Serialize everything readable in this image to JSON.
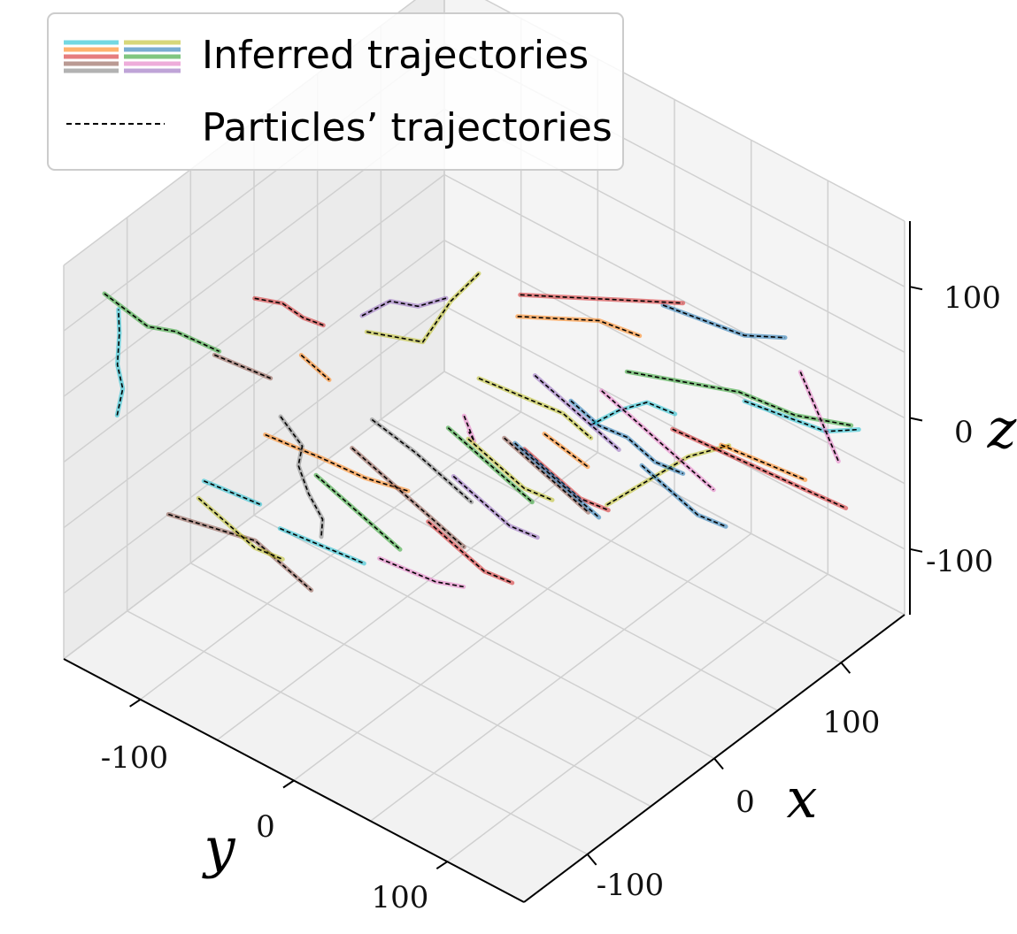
{
  "chart_data": {
    "type": "line",
    "projection": "3d",
    "xlabel": "x",
    "ylabel": "y",
    "zlabel": "z",
    "xlim": [
      -150,
      150
    ],
    "ylim": [
      -150,
      150
    ],
    "zlim": [
      -150,
      150
    ],
    "x_ticks": [
      "-100",
      "0",
      "100"
    ],
    "y_ticks": [
      "-100",
      "0",
      "100"
    ],
    "z_ticks": [
      "-100",
      "0",
      "100"
    ],
    "grid": true,
    "legend": {
      "position": "top-left",
      "entries": [
        {
          "label": "Inferred trajectories",
          "style": "multicolor-solid"
        },
        {
          "label": "Particles’ trajectories",
          "style": "black-dashed"
        }
      ]
    },
    "palette": [
      "#17becf",
      "#ff7f0e",
      "#d62728",
      "#8c564b",
      "#7f7f7f",
      "#bcbd22",
      "#1f77b4",
      "#2ca02c",
      "#e377c2",
      "#9467bd"
    ],
    "series": [
      {
        "color": "#17becf",
        "points": [
          [
            -120,
            -140,
            20
          ],
          [
            -118,
            -138,
            40
          ],
          [
            -121,
            -139,
            60
          ],
          [
            -117,
            -141,
            80
          ],
          [
            -119,
            -140,
            100
          ]
        ]
      },
      {
        "color": "#d62728",
        "points": [
          [
            -60,
            -100,
            90
          ],
          [
            -50,
            -90,
            85
          ],
          [
            -40,
            -85,
            70
          ],
          [
            -30,
            -80,
            60
          ]
        ]
      },
      {
        "color": "#ff7f0e",
        "points": [
          [
            -100,
            -60,
            40
          ],
          [
            -90,
            -50,
            30
          ],
          [
            -80,
            -40,
            20
          ],
          [
            -70,
            -20,
            10
          ],
          [
            -60,
            0,
            5
          ]
        ]
      },
      {
        "color": "#2ca02c",
        "points": [
          [
            -130,
            -140,
            120
          ],
          [
            -120,
            -120,
            100
          ],
          [
            -110,
            -110,
            95
          ],
          [
            -100,
            -90,
            85
          ]
        ]
      },
      {
        "color": "#8c564b",
        "points": [
          [
            -140,
            -90,
            -10
          ],
          [
            -130,
            -70,
            -15
          ],
          [
            -120,
            -50,
            -20
          ],
          [
            -110,
            -40,
            -40
          ],
          [
            -100,
            -30,
            -60
          ]
        ]
      },
      {
        "color": "#7f7f7f",
        "points": [
          [
            -100,
            -50,
            60
          ],
          [
            -95,
            -40,
            40
          ],
          [
            -92,
            -45,
            20
          ],
          [
            -90,
            -40,
            0
          ],
          [
            -85,
            -35,
            -20
          ],
          [
            -80,
            -40,
            -40
          ]
        ]
      },
      {
        "color": "#bcbd22",
        "points": [
          [
            -20,
            -60,
            60
          ],
          [
            -10,
            -50,
            55
          ],
          [
            0,
            -40,
            50
          ],
          [
            10,
            -30,
            80
          ],
          [
            20,
            -20,
            100
          ]
        ]
      },
      {
        "color": "#9467bd",
        "points": [
          [
            -60,
            -30,
            120
          ],
          [
            -50,
            -20,
            130
          ],
          [
            -40,
            -10,
            125
          ],
          [
            -30,
            0,
            130
          ]
        ]
      },
      {
        "color": "#e377c2",
        "points": [
          [
            -40,
            20,
            60
          ],
          [
            -30,
            15,
            40
          ],
          [
            -20,
            10,
            20
          ],
          [
            -10,
            0,
            10
          ],
          [
            0,
            -10,
            0
          ]
        ]
      },
      {
        "color": "#1f77b4",
        "points": [
          [
            20,
            100,
            150
          ],
          [
            40,
            110,
            130
          ],
          [
            60,
            120,
            110
          ],
          [
            80,
            130,
            100
          ]
        ]
      },
      {
        "color": "#d62728",
        "points": [
          [
            -20,
            40,
            150
          ],
          [
            0,
            50,
            140
          ],
          [
            20,
            60,
            130
          ],
          [
            40,
            70,
            120
          ],
          [
            60,
            80,
            110
          ]
        ]
      },
      {
        "color": "#ff7f0e",
        "points": [
          [
            -10,
            30,
            120
          ],
          [
            10,
            40,
            110
          ],
          [
            30,
            50,
            100
          ],
          [
            50,
            60,
            80
          ]
        ]
      },
      {
        "color": "#2ca02c",
        "points": [
          [
            40,
            60,
            60
          ],
          [
            60,
            80,
            50
          ],
          [
            80,
            100,
            40
          ],
          [
            100,
            120,
            20
          ],
          [
            120,
            140,
            10
          ]
        ]
      },
      {
        "color": "#17becf",
        "points": [
          [
            60,
            120,
            60
          ],
          [
            80,
            130,
            40
          ],
          [
            100,
            140,
            20
          ],
          [
            120,
            145,
            10
          ]
        ]
      },
      {
        "color": "#e377c2",
        "points": [
          [
            80,
            140,
            80
          ],
          [
            90,
            140,
            50
          ],
          [
            100,
            140,
            20
          ],
          [
            110,
            140,
            -10
          ]
        ]
      },
      {
        "color": "#bcbd22",
        "points": [
          [
            0,
            80,
            0
          ],
          [
            20,
            90,
            10
          ],
          [
            40,
            100,
            20
          ],
          [
            60,
            110,
            20
          ]
        ]
      },
      {
        "color": "#1f77b4",
        "points": [
          [
            20,
            40,
            40
          ],
          [
            30,
            50,
            20
          ],
          [
            40,
            60,
            10
          ],
          [
            50,
            70,
            -10
          ],
          [
            60,
            80,
            -20
          ]
        ]
      },
      {
        "color": "#d62728",
        "points": [
          [
            100,
            40,
            -40
          ],
          [
            110,
            60,
            -50
          ],
          [
            120,
            80,
            -60
          ],
          [
            130,
            100,
            -70
          ],
          [
            140,
            120,
            -80
          ]
        ]
      },
      {
        "color": "#ff7f0e",
        "points": [
          [
            90,
            80,
            -20
          ],
          [
            100,
            90,
            -30
          ],
          [
            110,
            100,
            -40
          ],
          [
            120,
            110,
            -50
          ]
        ]
      },
      {
        "color": "#17becf",
        "points": [
          [
            60,
            20,
            -20
          ],
          [
            70,
            30,
            -10
          ],
          [
            80,
            40,
            -5
          ],
          [
            90,
            50,
            -15
          ]
        ]
      },
      {
        "color": "#8c564b",
        "points": [
          [
            40,
            -20,
            -40
          ],
          [
            50,
            -10,
            -60
          ],
          [
            60,
            0,
            -80
          ],
          [
            70,
            10,
            -100
          ]
        ]
      },
      {
        "color": "#2ca02c",
        "points": [
          [
            20,
            -40,
            -30
          ],
          [
            30,
            -30,
            -50
          ],
          [
            40,
            -20,
            -70
          ],
          [
            50,
            -10,
            -90
          ]
        ]
      },
      {
        "color": "#bcbd22",
        "points": [
          [
            60,
            -60,
            -80
          ],
          [
            70,
            -50,
            -100
          ],
          [
            80,
            -40,
            -120
          ],
          [
            90,
            -30,
            -130
          ]
        ]
      },
      {
        "color": "#9467bd",
        "points": [
          [
            0,
            -20,
            -40
          ],
          [
            10,
            -10,
            -60
          ],
          [
            20,
            0,
            -80
          ],
          [
            30,
            10,
            -90
          ]
        ]
      },
      {
        "color": "#d62728",
        "points": [
          [
            80,
            -40,
            -90
          ],
          [
            90,
            -30,
            -110
          ],
          [
            100,
            -20,
            -130
          ],
          [
            110,
            -10,
            -140
          ]
        ]
      },
      {
        "color": "#1f77b4",
        "points": [
          [
            100,
            20,
            -80
          ],
          [
            110,
            30,
            -100
          ],
          [
            120,
            40,
            -120
          ],
          [
            130,
            50,
            -130
          ]
        ]
      },
      {
        "color": "#17becf",
        "points": [
          [
            -40,
            -100,
            -100
          ],
          [
            -30,
            -90,
            -110
          ],
          [
            -20,
            -80,
            -120
          ],
          [
            -10,
            -70,
            -130
          ]
        ]
      },
      {
        "color": "#bcbd22",
        "points": [
          [
            -80,
            -120,
            -60
          ],
          [
            -70,
            -110,
            -80
          ],
          [
            -60,
            -100,
            -100
          ],
          [
            -50,
            -90,
            -110
          ]
        ]
      },
      {
        "color": "#e377c2",
        "points": [
          [
            -10,
            -60,
            -120
          ],
          [
            0,
            -50,
            -130
          ],
          [
            10,
            -40,
            -140
          ],
          [
            20,
            -30,
            -145
          ]
        ]
      },
      {
        "color": "#ff7f0e",
        "points": [
          [
            120,
            -60,
            -120
          ],
          [
            125,
            -50,
            -130
          ],
          [
            130,
            -40,
            -140
          ]
        ]
      },
      {
        "color": "#8c564b",
        "points": [
          [
            -80,
            -20,
            40
          ],
          [
            -70,
            -10,
            20
          ],
          [
            -60,
            0,
            0
          ],
          [
            -50,
            10,
            -20
          ],
          [
            -40,
            20,
            -40
          ]
        ]
      },
      {
        "color": "#7f7f7f",
        "points": [
          [
            -40,
            -40,
            20
          ],
          [
            -30,
            -20,
            0
          ],
          [
            -20,
            -10,
            -20
          ],
          [
            -10,
            0,
            -40
          ]
        ]
      },
      {
        "color": "#2ca02c",
        "points": [
          [
            -60,
            -60,
            -20
          ],
          [
            -50,
            -50,
            -40
          ],
          [
            -40,
            -40,
            -60
          ],
          [
            -30,
            -30,
            -80
          ]
        ]
      },
      {
        "color": "#9467bd",
        "points": [
          [
            40,
            0,
            20
          ],
          [
            50,
            10,
            0
          ],
          [
            60,
            20,
            -20
          ],
          [
            70,
            30,
            -40
          ]
        ]
      },
      {
        "color": "#e377c2",
        "points": [
          [
            20,
            60,
            60
          ],
          [
            30,
            70,
            40
          ],
          [
            40,
            80,
            20
          ],
          [
            50,
            90,
            0
          ],
          [
            60,
            100,
            -20
          ]
        ]
      },
      {
        "color": "#bcbd22",
        "points": [
          [
            20,
            -20,
            20
          ],
          [
            30,
            -10,
            10
          ],
          [
            40,
            0,
            0
          ],
          [
            50,
            10,
            -10
          ],
          [
            60,
            20,
            -30
          ]
        ]
      },
      {
        "color": "#1f77b4",
        "points": [
          [
            0,
            20,
            10
          ],
          [
            10,
            30,
            -10
          ],
          [
            20,
            40,
            -30
          ],
          [
            30,
            50,
            -50
          ]
        ]
      },
      {
        "color": "#d62728",
        "points": [
          [
            -20,
            -20,
            -60
          ],
          [
            -10,
            -10,
            -80
          ],
          [
            0,
            0,
            -100
          ],
          [
            10,
            10,
            -110
          ]
        ]
      },
      {
        "color": "#17becf",
        "points": [
          [
            -100,
            -100,
            -20
          ],
          [
            -90,
            -90,
            -30
          ],
          [
            -80,
            -80,
            -40
          ]
        ]
      },
      {
        "color": "#ff7f0e",
        "points": [
          [
            -120,
            -20,
            140
          ],
          [
            -115,
            -15,
            130
          ],
          [
            -110,
            -10,
            120
          ]
        ]
      },
      {
        "color": "#8c564b",
        "points": [
          [
            -140,
            -60,
            130
          ],
          [
            -130,
            -50,
            120
          ],
          [
            -120,
            -40,
            110
          ]
        ]
      }
    ]
  }
}
